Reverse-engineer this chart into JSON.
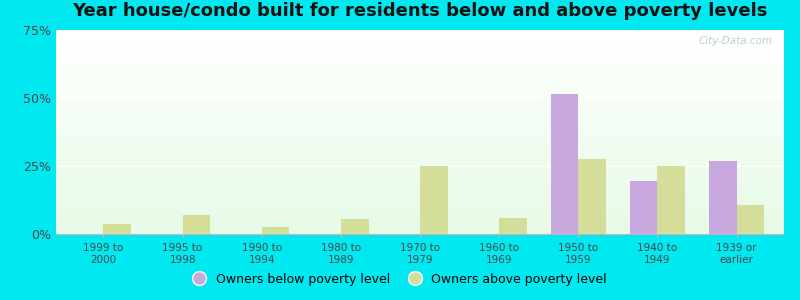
{
  "title": "Year house/condo built for residents below and above poverty levels",
  "categories": [
    "1999 to\n2000",
    "1995 to\n1998",
    "1990 to\n1994",
    "1980 to\n1989",
    "1970 to\n1979",
    "1960 to\n1969",
    "1950 to\n1959",
    "1940 to\n1949",
    "1939 or\nearlier"
  ],
  "below_poverty": [
    0.0,
    0.0,
    0.0,
    0.0,
    0.0,
    0.0,
    51.5,
    19.5,
    27.0
  ],
  "above_poverty": [
    3.5,
    7.0,
    2.5,
    5.5,
    25.0,
    6.0,
    27.5,
    25.0,
    10.5
  ],
  "below_color": "#c9a8e0",
  "above_color": "#d4de9a",
  "ylim": [
    0,
    75
  ],
  "yticks": [
    0,
    25,
    50,
    75
  ],
  "ytick_labels": [
    "0%",
    "25%",
    "50%",
    "75%"
  ],
  "outer_background": "#00e8f0",
  "bar_width": 0.35,
  "title_fontsize": 13,
  "legend_below": "Owners below poverty level",
  "legend_above": "Owners above poverty level"
}
